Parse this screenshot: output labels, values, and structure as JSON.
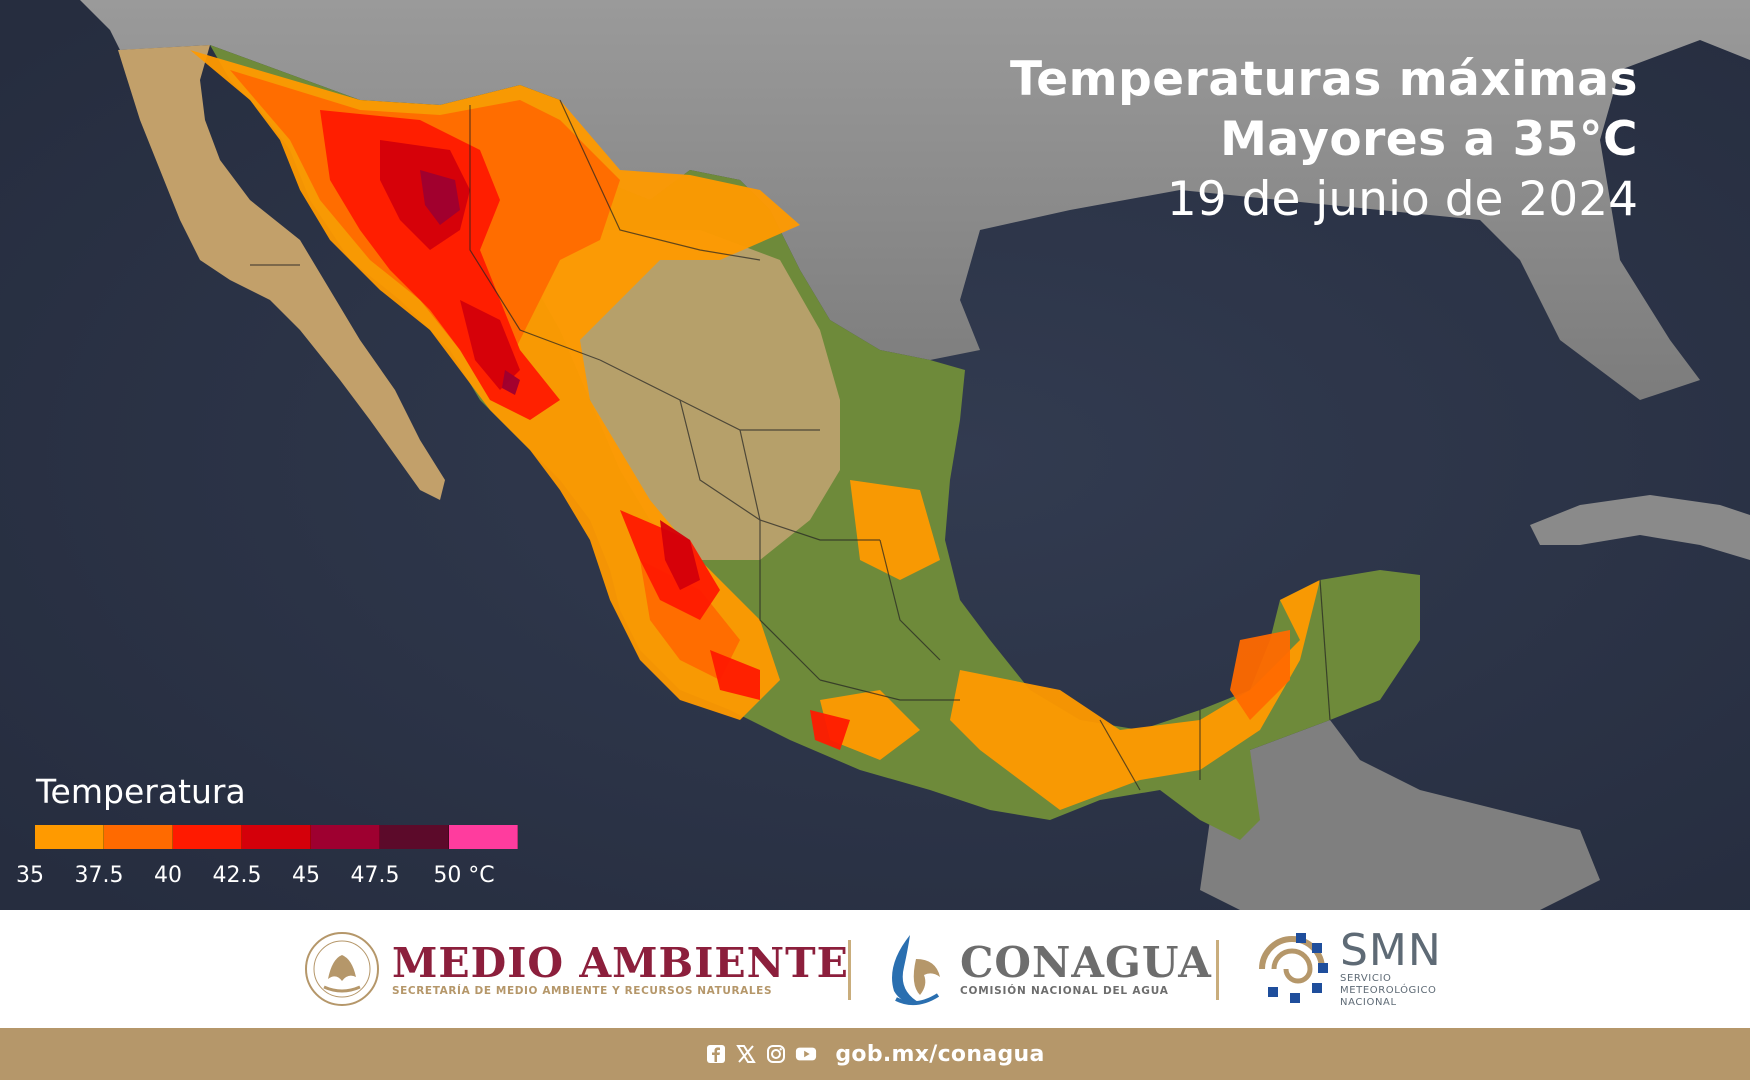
{
  "title": {
    "line1": "Temperaturas máximas",
    "line2": "Mayores a 35°C",
    "line3": "19 de junio de 2024"
  },
  "legend": {
    "title": "Temperatura",
    "swatches": [
      "#ff9a00",
      "#ff6a00",
      "#ff1a00",
      "#d4000a",
      "#9e0030",
      "#5c0a2a",
      "#ff3c9e"
    ],
    "ticks": [
      "35",
      "37.5",
      "40",
      "42.5",
      "45",
      "47.5",
      "50 °C"
    ]
  },
  "colors": {
    "ocean": "#2b3346",
    "land_green": "#6e8a3a",
    "land_tan": "#c2a06a",
    "land_gray": "#8d8d8d",
    "medio_ambiente": "#8c1f3c",
    "gold": "#b5976a",
    "conagua_gray": "#6d6d6d"
  },
  "footer": {
    "medio_ambiente": {
      "title": "MEDIO AMBIENTE",
      "subtitle": "SECRETARÍA DE MEDIO AMBIENTE Y RECURSOS NATURALES"
    },
    "conagua": {
      "title": "CONAGUA",
      "subtitle": "COMISIÓN NACIONAL DEL AGUA"
    },
    "smn": {
      "title": "SMN",
      "subtitle_line1": "SERVICIO",
      "subtitle_line2": "METEOROLÓGICO",
      "subtitle_line3": "NACIONAL"
    },
    "social_icons": [
      "facebook-icon",
      "x-icon",
      "instagram-icon",
      "youtube-icon"
    ],
    "website": "gob.mx/conagua"
  }
}
